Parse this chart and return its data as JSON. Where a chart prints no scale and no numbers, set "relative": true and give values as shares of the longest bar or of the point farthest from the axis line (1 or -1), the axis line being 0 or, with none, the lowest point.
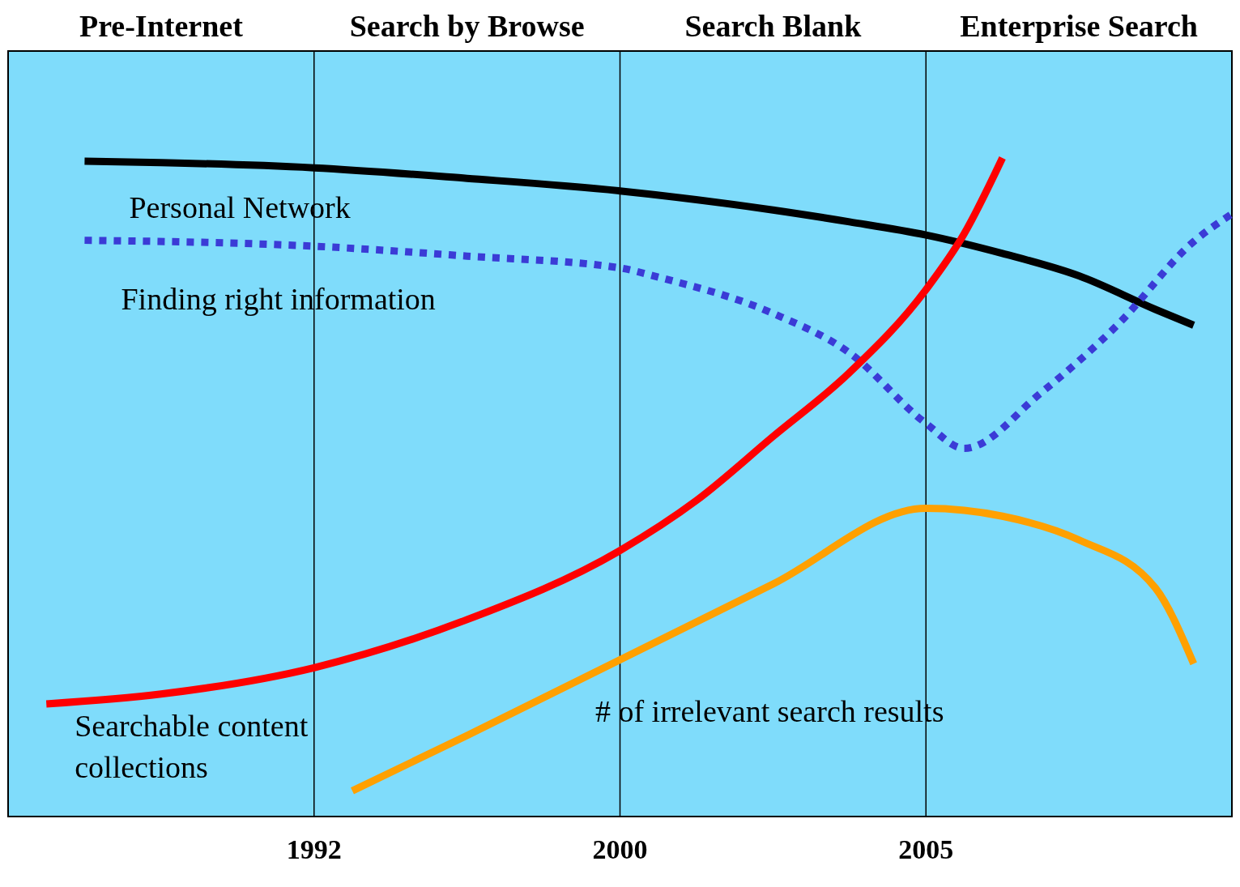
{
  "chart_data": {
    "type": "line",
    "relative": true,
    "legend": false,
    "grid": false,
    "line_style": "solid",
    "marker": "none",
    "categories": [
      null,
      null,
      null,
      null,
      null,
      null,
      null,
      null,
      "1992",
      null,
      null,
      null,
      null,
      null,
      null,
      null,
      "2000",
      null,
      null,
      null,
      null,
      null,
      null,
      null,
      "2005",
      null,
      null,
      null,
      null,
      null,
      null,
      null,
      null
    ],
    "series": [
      {
        "name": "Personal Network",
        "color": "#000000",
        "values": [
          null,
          null,
          0.995,
          null,
          0.993,
          null,
          null,
          null,
          0.985,
          null,
          null,
          null,
          0.969,
          null,
          null,
          null,
          0.95,
          null,
          null,
          null,
          0.921,
          null,
          0.903,
          null,
          0.883,
          null,
          0.855,
          null,
          0.821,
          null,
          0.77,
          0.746,
          null
        ]
      },
      {
        "name": "Finding right information",
        "color": "#3b3bd6",
        "line_style": "dotted",
        "values": [
          null,
          null,
          0.875,
          null,
          null,
          null,
          null,
          null,
          0.866,
          null,
          null,
          null,
          0.851,
          null,
          null,
          null,
          0.833,
          0.819,
          null,
          null,
          0.764,
          null,
          0.704,
          null,
          0.597,
          0.559,
          null,
          0.643,
          null,
          0.746,
          null,
          0.873,
          0.915
        ]
      },
      {
        "name": "Searchable content collections",
        "color": "#ff0000",
        "values": [
          null,
          0.171,
          null,
          null,
          0.186,
          null,
          null,
          null,
          0.226,
          null,
          null,
          null,
          0.299,
          null,
          null,
          null,
          0.404,
          null,
          0.48,
          null,
          0.577,
          null,
          0.674,
          null,
          0.8,
          0.885,
          1,
          null,
          null,
          null,
          null,
          null,
          null
        ]
      },
      {
        "name": "# of irrelevant search results",
        "color": "#ffa000",
        "values": [
          null,
          null,
          null,
          null,
          null,
          null,
          null,
          null,
          null,
          0.039,
          null,
          null,
          0.123,
          null,
          null,
          null,
          0.238,
          null,
          null,
          null,
          0.353,
          null,
          null,
          null,
          0.468,
          null,
          0.456,
          null,
          0.42,
          null,
          0.347,
          0.232,
          null
        ]
      }
    ],
    "ref_lines": [
      {
        "axis": "x",
        "value": "1992",
        "color": "#000000"
      },
      {
        "axis": "x",
        "value": "2000",
        "color": "#000000"
      },
      {
        "axis": "x",
        "value": "2005",
        "color": "#000000"
      }
    ],
    "annotations": [
      "Pre-Internet",
      "Search by Browse",
      "Search Blank",
      "Enterprise Search"
    ]
  }
}
